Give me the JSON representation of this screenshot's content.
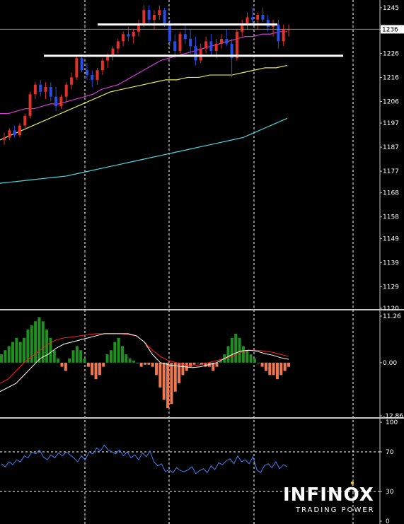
{
  "chart_data": [
    {
      "type": "candlestick",
      "panel": "price",
      "ylim": [
        1120,
        1247
      ],
      "y_ticks": [
        "1245",
        "1236",
        "1226",
        "1216",
        "1206",
        "1197",
        "1187",
        "1177",
        "1168",
        "1158",
        "1149",
        "1139",
        "1129",
        "1120"
      ],
      "current_price": "1236",
      "colors": {
        "up": "#e0312a",
        "down": "#2a4de6",
        "ma_magenta": "#d43bd4",
        "ma_yellow": "#e8e85a",
        "ma_cyan": "#4fd6e0",
        "support": "#ffffff"
      },
      "candles": [
        [
          1190,
          1193,
          1188,
          1191
        ],
        [
          1191,
          1195,
          1190,
          1194
        ],
        [
          1194,
          1196,
          1191,
          1192
        ],
        [
          1192,
          1197,
          1191,
          1196
        ],
        [
          1196,
          1201,
          1195,
          1200
        ],
        [
          1200,
          1210,
          1199,
          1209
        ],
        [
          1209,
          1214,
          1207,
          1213
        ],
        [
          1213,
          1215,
          1208,
          1210
        ],
        [
          1210,
          1214,
          1207,
          1212
        ],
        [
          1212,
          1214,
          1206,
          1208
        ],
        [
          1208,
          1212,
          1202,
          1204
        ],
        [
          1204,
          1209,
          1203,
          1208
        ],
        [
          1208,
          1214,
          1206,
          1213
        ],
        [
          1213,
          1218,
          1211,
          1216
        ],
        [
          1216,
          1225,
          1215,
          1224
        ],
        [
          1224,
          1225,
          1218,
          1219
        ],
        [
          1219,
          1222,
          1215,
          1217
        ],
        [
          1217,
          1219,
          1212,
          1215
        ],
        [
          1215,
          1220,
          1213,
          1219
        ],
        [
          1219,
          1224,
          1217,
          1223
        ],
        [
          1223,
          1226,
          1220,
          1225
        ],
        [
          1225,
          1229,
          1223,
          1228
        ],
        [
          1228,
          1232,
          1226,
          1231
        ],
        [
          1231,
          1235,
          1229,
          1234
        ],
        [
          1234,
          1237,
          1231,
          1233
        ],
        [
          1233,
          1236,
          1230,
          1235
        ],
        [
          1235,
          1240,
          1233,
          1238
        ],
        [
          1238,
          1246,
          1237,
          1244
        ],
        [
          1244,
          1246,
          1238,
          1240
        ],
        [
          1240,
          1244,
          1236,
          1242
        ],
        [
          1242,
          1246,
          1240,
          1244
        ],
        [
          1244,
          1245,
          1237,
          1238
        ],
        [
          1238,
          1240,
          1229,
          1231
        ],
        [
          1231,
          1234,
          1224,
          1227
        ],
        [
          1227,
          1235,
          1226,
          1234
        ],
        [
          1234,
          1238,
          1230,
          1232
        ],
        [
          1232,
          1236,
          1226,
          1229
        ],
        [
          1229,
          1233,
          1221,
          1223
        ],
        [
          1223,
          1230,
          1222,
          1228
        ],
        [
          1228,
          1233,
          1226,
          1231
        ],
        [
          1231,
          1234,
          1225,
          1227
        ],
        [
          1227,
          1232,
          1224,
          1230
        ],
        [
          1230,
          1234,
          1228,
          1232
        ],
        [
          1232,
          1236,
          1229,
          1230
        ],
        [
          1230,
          1232,
          1216,
          1224
        ],
        [
          1224,
          1236,
          1223,
          1235
        ],
        [
          1235,
          1240,
          1233,
          1238
        ],
        [
          1238,
          1243,
          1236,
          1241
        ],
        [
          1241,
          1245,
          1238,
          1240
        ],
        [
          1240,
          1243,
          1236,
          1242
        ],
        [
          1242,
          1245,
          1239,
          1240
        ],
        [
          1240,
          1242,
          1235,
          1237
        ],
        [
          1237,
          1240,
          1233,
          1238
        ],
        [
          1238,
          1240,
          1228,
          1231
        ],
        [
          1231,
          1238,
          1229,
          1236
        ],
        [
          1236,
          1238,
          1233,
          1236
        ]
      ],
      "ma_magenta": [
        1201,
        1201,
        1202,
        1203,
        1203,
        1204,
        1205,
        1205,
        1206,
        1207,
        1208,
        1209,
        1211,
        1212,
        1213,
        1215,
        1217,
        1219,
        1221,
        1223,
        1224,
        1225,
        1226,
        1227,
        1228,
        1229,
        1230,
        1231,
        1232,
        1233,
        1233,
        1234,
        1234,
        1235,
        1235
      ],
      "ma_yellow": [
        1190,
        1192,
        1194,
        1196,
        1198,
        1200,
        1202,
        1204,
        1206,
        1208,
        1210,
        1211,
        1212,
        1213,
        1214,
        1215,
        1215,
        1216,
        1216,
        1217,
        1217,
        1217,
        1218,
        1219,
        1220,
        1220,
        1221
      ],
      "ma_cyan": [
        1172,
        1172.5,
        1173,
        1173.5,
        1174,
        1174.5,
        1175,
        1176,
        1177,
        1178,
        1179,
        1180,
        1181,
        1182,
        1183,
        1184,
        1185,
        1186,
        1187,
        1188,
        1189,
        1190,
        1191,
        1193,
        1195,
        1197,
        1199
      ],
      "support_lines": [
        1238,
        1225
      ]
    },
    {
      "type": "bar",
      "panel": "macd",
      "ylim": [
        -12.86,
        11.26
      ],
      "y_ticks": [
        "11.26",
        "0.00",
        "-12.86"
      ],
      "colors": {
        "positive": "#1f8f1f",
        "negative": "#f07850",
        "signal": "#ff2020",
        "macd_line": "#ffffff"
      },
      "values": [
        2,
        3,
        4,
        5,
        6,
        5,
        6,
        8,
        9,
        10,
        11,
        10,
        8,
        6,
        3,
        1,
        -1,
        -2,
        1,
        3,
        4,
        3,
        1,
        -1,
        -3,
        -4,
        -3,
        -1,
        2,
        3,
        5,
        6,
        4,
        2,
        1,
        0.5,
        0,
        -1,
        -0.5,
        -0.5,
        -1,
        -3,
        -6,
        -9,
        -11,
        -10,
        -7,
        -5,
        -3,
        -2,
        -1,
        -0.5,
        0,
        -0.5,
        -1,
        -1,
        -2,
        -1,
        0.5,
        2,
        4,
        6,
        7,
        6,
        4,
        3,
        2,
        1,
        0,
        -1,
        -2,
        -3,
        -3,
        -4,
        -3,
        -2,
        -1
      ],
      "signal": [
        -5,
        -4,
        -2,
        0,
        1.5,
        3,
        4.5,
        5.5,
        6,
        6.2,
        6.5,
        6.8,
        7,
        7,
        7,
        7,
        6.8,
        6.5,
        5,
        3,
        1.5,
        0.5,
        0,
        -0.5,
        -0.8,
        -0.5,
        0,
        0.5,
        1,
        1.5,
        2.5,
        3,
        3,
        2.8,
        2.5,
        2,
        1.5
      ],
      "macd": [
        -7,
        -6,
        -5,
        -3,
        -1,
        1,
        2,
        3.5,
        4.5,
        5,
        5.5,
        6,
        6.5,
        7,
        7,
        7,
        7,
        6.5,
        5,
        2,
        0,
        -0.5,
        -0.8,
        -1,
        -1.2,
        -1,
        -0.5,
        0,
        1,
        2,
        2.8,
        3,
        2.8,
        2.2,
        1.8,
        1.2,
        0.8
      ]
    },
    {
      "type": "line",
      "panel": "rsi",
      "ylim": [
        0,
        100
      ],
      "y_ticks": [
        "100",
        "70",
        "30",
        "0"
      ],
      "levels": [
        70,
        30
      ],
      "colors": {
        "line": "#3f7ff0"
      },
      "values": [
        58,
        55,
        60,
        57,
        62,
        60,
        66,
        64,
        70,
        68,
        72,
        65,
        62,
        67,
        64,
        69,
        66,
        70,
        67,
        64,
        60,
        66,
        62,
        70,
        68,
        74,
        71,
        77,
        72,
        70,
        68,
        72,
        66,
        70,
        64,
        67,
        62,
        69,
        65,
        71,
        60,
        56,
        58,
        50,
        52,
        49,
        54,
        51,
        50,
        52,
        55,
        48,
        51,
        53,
        49,
        56,
        52,
        59,
        57,
        61,
        63,
        58,
        66,
        60,
        62,
        58,
        65,
        52,
        49,
        56,
        58,
        54,
        60,
        53,
        57,
        55
      ]
    }
  ],
  "logo": {
    "name": "INFINOX",
    "tagline": "TRADING POWER"
  }
}
